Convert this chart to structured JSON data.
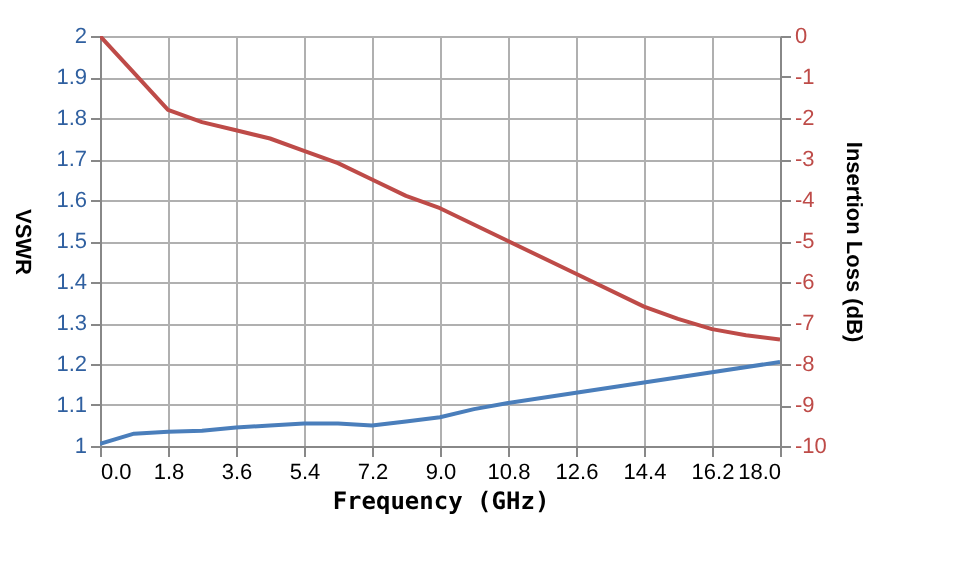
{
  "chart_data": {
    "type": "line",
    "xlabel": "Frequency (GHz)",
    "ylabel": "VSWR",
    "y2label": "Insertion Loss (dB)",
    "xlim": [
      0,
      18
    ],
    "xticks": [
      {
        "value": 0,
        "label": "0.0"
      },
      {
        "value": 1.8,
        "label": "1.8"
      },
      {
        "value": 3.6,
        "label": "3.6"
      },
      {
        "value": 5.4,
        "label": "5.4"
      },
      {
        "value": 7.2,
        "label": "7.2"
      },
      {
        "value": 9,
        "label": "9.0"
      },
      {
        "value": 10.8,
        "label": "10.8"
      },
      {
        "value": 12.6,
        "label": "12.6"
      },
      {
        "value": 14.4,
        "label": "14.4"
      },
      {
        "value": 16.2,
        "label": "16.2"
      },
      {
        "value": 18,
        "label": "18.0"
      }
    ],
    "ylim": [
      1,
      2
    ],
    "yticks": [
      1,
      1.1,
      1.2,
      1.3,
      1.4,
      1.5,
      1.6,
      1.7,
      1.8,
      1.9,
      2
    ],
    "y2lim": [
      -10,
      0
    ],
    "y2ticks": [
      -10,
      -9,
      -8,
      -7,
      -6,
      -5,
      -4,
      -3,
      -2,
      -1,
      0
    ],
    "grid": true,
    "marker": "none",
    "line_style": "solid",
    "series": [
      {
        "color": "#4a7ebb",
        "x": [
          0,
          0.9,
          1.8,
          2.7,
          3.6,
          4.5,
          5.4,
          6.3,
          7.2,
          8.1,
          9,
          9.9,
          10.8,
          12.6,
          14.4,
          16.2,
          18
        ],
        "values": [
          1.005,
          1.03,
          1.035,
          1.037,
          1.045,
          1.05,
          1.055,
          1.055,
          1.05,
          1.06,
          1.07,
          1.09,
          1.105,
          1.13,
          1.155,
          1.18,
          1.205
        ]
      },
      {
        "color": "#be4b48",
        "axis": "y2",
        "x": [
          0,
          0.9,
          1.8,
          2.7,
          3.6,
          4.5,
          5.4,
          6.3,
          7.2,
          8.1,
          9,
          10.8,
          12.6,
          14.4,
          15.3,
          16.2,
          17.1,
          18
        ],
        "values": [
          0,
          -0.9,
          -1.8,
          -2.1,
          -2.3,
          -2.5,
          -2.8,
          -3.1,
          -3.5,
          -3.9,
          -4.2,
          -5.0,
          -5.8,
          -6.6,
          -6.9,
          -7.15,
          -7.3,
          -7.4
        ]
      }
    ]
  }
}
